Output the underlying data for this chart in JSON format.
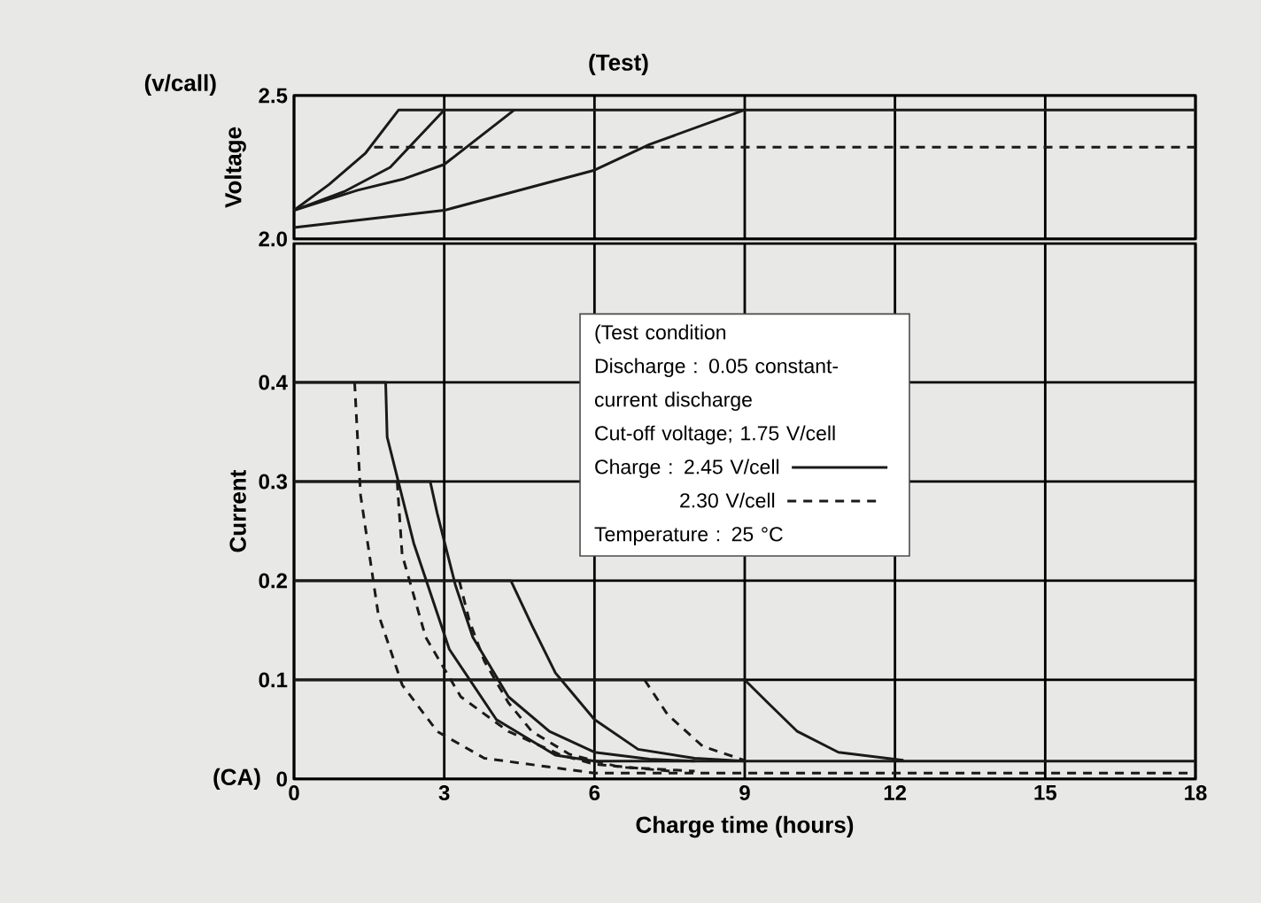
{
  "chart_data": [
    {
      "type": "line",
      "title": "(Test)",
      "ylabel": "Voltage",
      "annotations": [
        "(v/call)"
      ],
      "xlim": [
        0,
        18
      ],
      "xticks": [
        0,
        3,
        6,
        9,
        12,
        15,
        18
      ],
      "ylim": [
        2.0,
        2.5
      ],
      "yticks": [
        {
          "value": 2.0,
          "label": "2.0"
        },
        {
          "value": 2.5,
          "label": "2.5"
        }
      ],
      "tick_labels": "y",
      "grid": true,
      "marker": "none",
      "series": [
        {
          "color": "#1a1a1a",
          "line_style": "solid",
          "x": [
            0,
            0.7,
            1.43,
            2.09,
            18
          ],
          "values": [
            2.1,
            2.19,
            2.3,
            2.45,
            2.45
          ]
        },
        {
          "color": "#1a1a1a",
          "line_style": "solid",
          "x": [
            0,
            1.0,
            1.92,
            3.0
          ],
          "values": [
            2.1,
            2.165,
            2.25,
            2.45
          ]
        },
        {
          "color": "#1a1a1a",
          "line_style": "solid",
          "x": [
            0,
            1.27,
            2.2,
            3.0,
            4.4
          ],
          "values": [
            2.1,
            2.17,
            2.21,
            2.26,
            2.45
          ]
        },
        {
          "color": "#1a1a1a",
          "line_style": "solid",
          "x": [
            0,
            3,
            6,
            7.1,
            9.0
          ],
          "values": [
            2.04,
            2.1,
            2.24,
            2.33,
            2.45
          ]
        },
        {
          "color": "#1a1a1a",
          "line_style": "dashed",
          "x": [
            1.6,
            18
          ],
          "values": [
            2.32,
            2.32
          ]
        }
      ]
    },
    {
      "type": "line",
      "xlabel": "Charge time (hours)",
      "ylabel": "Current",
      "annotations": [
        "(CA)",
        "(Test condition",
        "Discharge : 0.05 constant-current discharge",
        "Cut-off voltage; 1.75 V/cell",
        "Temperature : 25 °C"
      ],
      "xlim": [
        0,
        18
      ],
      "xticks": [
        0,
        3,
        6,
        9,
        12,
        15,
        18
      ],
      "ylim": [
        0,
        0.54
      ],
      "yticks": [
        0,
        0.1,
        0.2,
        0.3,
        0.4
      ],
      "grid": true,
      "legend": "top",
      "marker": "none",
      "series": [
        {
          "name": "Charge : 2.45 V/cell",
          "color": "#1a1a1a",
          "line_style": "solid",
          "x": [
            0,
            1.83,
            1.86,
            2.39,
            3.1,
            4.04,
            5.22,
            6,
            18
          ],
          "values": [
            0.4,
            0.4,
            0.345,
            0.238,
            0.131,
            0.06,
            0.024,
            0.018,
            0.018
          ]
        },
        {
          "color": "#1a1a1a",
          "line_style": "solid",
          "x": [
            0,
            2.72,
            2.86,
            3.22,
            3.57,
            4.28,
            5.1,
            6,
            7.1,
            8
          ],
          "values": [
            0.3,
            0.3,
            0.268,
            0.196,
            0.143,
            0.083,
            0.048,
            0.027,
            0.02,
            0.018
          ]
        },
        {
          "color": "#1a1a1a",
          "line_style": "solid",
          "x": [
            0,
            4.33,
            4.75,
            5.22,
            6,
            6.87,
            8,
            9
          ],
          "values": [
            0.2,
            0.2,
            0.155,
            0.107,
            0.06,
            0.03,
            0.021,
            0.018
          ]
        },
        {
          "color": "#1a1a1a",
          "line_style": "solid",
          "x": [
            0,
            9.0,
            9.46,
            10.05,
            10.87,
            12.17
          ],
          "values": [
            0.1,
            0.1,
            0.077,
            0.048,
            0.027,
            0.019
          ]
        },
        {
          "name": "2.30 V/cell",
          "color": "#1a1a1a",
          "line_style": "dashed",
          "x": [
            1.21,
            1.33,
            1.68,
            2.16,
            2.86,
            3.8,
            6,
            18
          ],
          "values": [
            0.4,
            0.286,
            0.167,
            0.095,
            0.048,
            0.021,
            0.006,
            0.006
          ]
        },
        {
          "color": "#1a1a1a",
          "line_style": "dashed",
          "x": [
            2.06,
            2.16,
            2.63,
            3.33,
            4.28,
            5.34,
            6,
            7.5
          ],
          "values": [
            0.3,
            0.226,
            0.143,
            0.083,
            0.048,
            0.024,
            0.015,
            0.008
          ]
        },
        {
          "color": "#1a1a1a",
          "line_style": "dashed",
          "x": [
            3.3,
            3.5,
            3.8,
            4.28,
            4.75,
            5.5,
            6.5,
            8
          ],
          "values": [
            0.2,
            0.16,
            0.119,
            0.077,
            0.048,
            0.025,
            0.012,
            0.008
          ]
        },
        {
          "color": "#1a1a1a",
          "line_style": "dashed",
          "x": [
            7.0,
            7.46,
            8.16,
            8.99
          ],
          "values": [
            0.1,
            0.065,
            0.033,
            0.019
          ]
        }
      ]
    }
  ]
}
